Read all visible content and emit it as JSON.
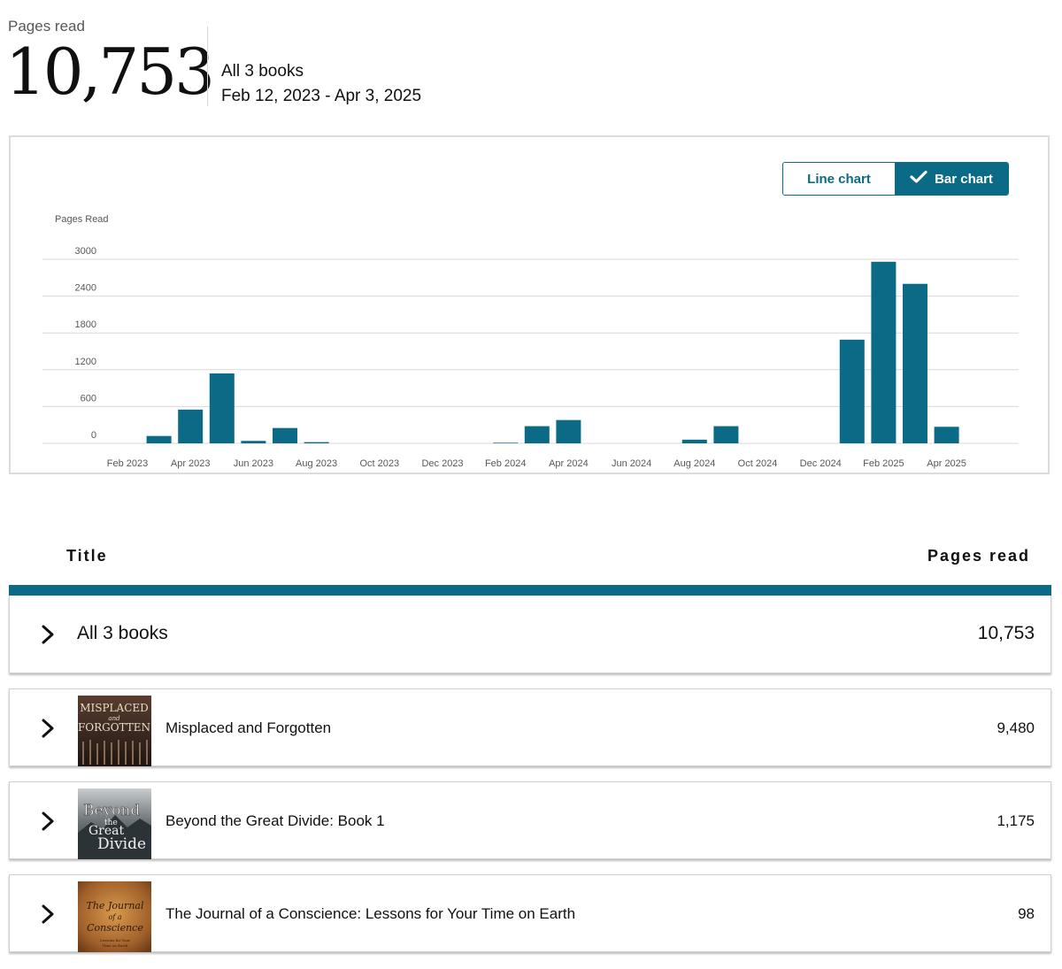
{
  "summary": {
    "label": "Pages read",
    "total": "10,753",
    "books": "All 3 books",
    "date_range": "Feb 12, 2023 - Apr 3, 2025"
  },
  "toggle": {
    "line_label": "Line chart",
    "bar_label": "Bar chart",
    "selected": "bar"
  },
  "colors": {
    "accent": "#0b6b86",
    "grid": "#d9d9d9",
    "axis_text": "#565959"
  },
  "chart_data": {
    "type": "bar",
    "ylabel": "Pages Read",
    "yticks": [
      0,
      600,
      1200,
      1800,
      2400,
      3000
    ],
    "ylim": [
      0,
      3000
    ],
    "xtick_labels": [
      "Feb 2023",
      "Apr 2023",
      "Jun 2023",
      "Aug 2023",
      "Oct 2023",
      "Dec 2023",
      "Feb 2024",
      "Apr 2024",
      "Jun 2024",
      "Aug 2024",
      "Oct 2024",
      "Dec 2024",
      "Feb 2025",
      "Apr 2025"
    ],
    "categories": [
      "Feb 2023",
      "Mar 2023",
      "Apr 2023",
      "May 2023",
      "Jun 2023",
      "Jul 2023",
      "Aug 2023",
      "Sep 2023",
      "Oct 2023",
      "Nov 2023",
      "Dec 2023",
      "Jan 2024",
      "Feb 2024",
      "Mar 2024",
      "Apr 2024",
      "May 2024",
      "Jun 2024",
      "Jul 2024",
      "Aug 2024",
      "Sep 2024",
      "Oct 2024",
      "Nov 2024",
      "Dec 2024",
      "Jan 2025",
      "Feb 2025",
      "Mar 2025",
      "Apr 2025"
    ],
    "values": [
      0,
      120,
      550,
      1140,
      40,
      250,
      20,
      0,
      0,
      0,
      0,
      0,
      10,
      280,
      380,
      0,
      0,
      0,
      60,
      280,
      0,
      0,
      0,
      1690,
      2960,
      2600,
      270
    ],
    "grid": true
  },
  "table": {
    "col_title": "Title",
    "col_pages": "Pages read",
    "all_row": {
      "label": "All 3 books",
      "value": "10,753"
    },
    "books": [
      {
        "title": "Misplaced and Forgotten",
        "pages": "9,480",
        "cover": {
          "line1": "MISPLACED",
          "line2": "and",
          "line3": "FORGOTTEN"
        }
      },
      {
        "title": "Beyond the Great Divide: Book 1",
        "pages": "1,175",
        "cover": {
          "line1": "Beyond",
          "line2": "the",
          "line3": "Great",
          "line4": "Divide"
        }
      },
      {
        "title": "The Journal of a Conscience: Lessons for Your Time on Earth",
        "pages": "98",
        "cover": {
          "line1": "The Journal",
          "line2": "of a",
          "line3": "Conscience",
          "line4": "Lessons for Your",
          "line5": "Time on Earth"
        }
      }
    ]
  }
}
